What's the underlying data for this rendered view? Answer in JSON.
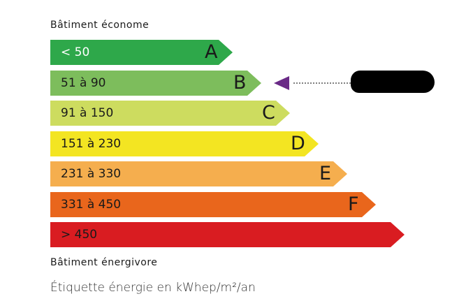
{
  "header_label": "Bâtiment économe",
  "footer_label": "Bâtiment énergivore",
  "caption": "Étiquette énergie en kWhep/m²/an",
  "classes": [
    {
      "letter": "A",
      "range": "< 50",
      "color": "#2ea84a",
      "text_color": "#ffffff"
    },
    {
      "letter": "B",
      "range": "51 à 90",
      "color": "#7dbd5c",
      "text_color": "#1a1a1a"
    },
    {
      "letter": "C",
      "range": "91 à 150",
      "color": "#cddc5f",
      "text_color": "#1a1a1a"
    },
    {
      "letter": "D",
      "range": "151 à 230",
      "color": "#f3e522",
      "text_color": "#1a1a1a"
    },
    {
      "letter": "E",
      "range": "231 à 330",
      "color": "#f5ae4e",
      "text_color": "#1a1a1a"
    },
    {
      "letter": "F",
      "range": "331 à 450",
      "color": "#e9661c",
      "text_color": "#1a1a1a"
    },
    {
      "letter": "",
      "range": "> 450",
      "color": "#d91c21",
      "text_color": "#1a1a1a"
    }
  ],
  "current_class": "B",
  "marker_color": "#6a2a87"
}
